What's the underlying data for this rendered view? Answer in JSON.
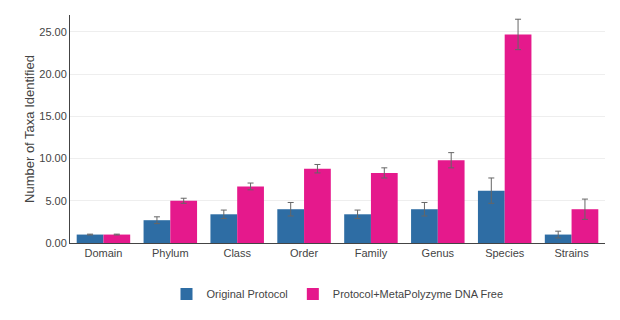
{
  "chart_data": {
    "type": "bar",
    "categories": [
      "Domain",
      "Phylum",
      "Class",
      "Order",
      "Family",
      "Genus",
      "Species",
      "Strains"
    ],
    "series": [
      {
        "name": "Original Protocol",
        "color": "#2e6da4",
        "values": [
          1.0,
          2.7,
          3.4,
          4.0,
          3.4,
          4.0,
          6.2,
          1.0
        ],
        "errors": [
          0.05,
          0.4,
          0.5,
          0.8,
          0.5,
          0.8,
          1.5,
          0.4
        ]
      },
      {
        "name": "Protocol+MetaPolyzyme DNA Free",
        "color": "#e5198c",
        "values": [
          1.0,
          5.0,
          6.7,
          8.8,
          8.3,
          9.8,
          24.7,
          4.0
        ],
        "errors": [
          0.05,
          0.3,
          0.4,
          0.5,
          0.6,
          0.9,
          1.8,
          1.2
        ]
      }
    ],
    "ylabel": "Number of Taxa Identified",
    "ylim": [
      0,
      27
    ],
    "yticks": [
      {
        "value": 0.0,
        "label": "0.00"
      },
      {
        "value": 5.0,
        "label": "5.00"
      },
      {
        "value": 10.0,
        "label": "10.00"
      },
      {
        "value": 15.0,
        "label": "15.00"
      },
      {
        "value": 20.0,
        "label": "20.00"
      },
      {
        "value": 25.0,
        "label": "25.00"
      }
    ],
    "grid": true,
    "legend": "bottom"
  }
}
